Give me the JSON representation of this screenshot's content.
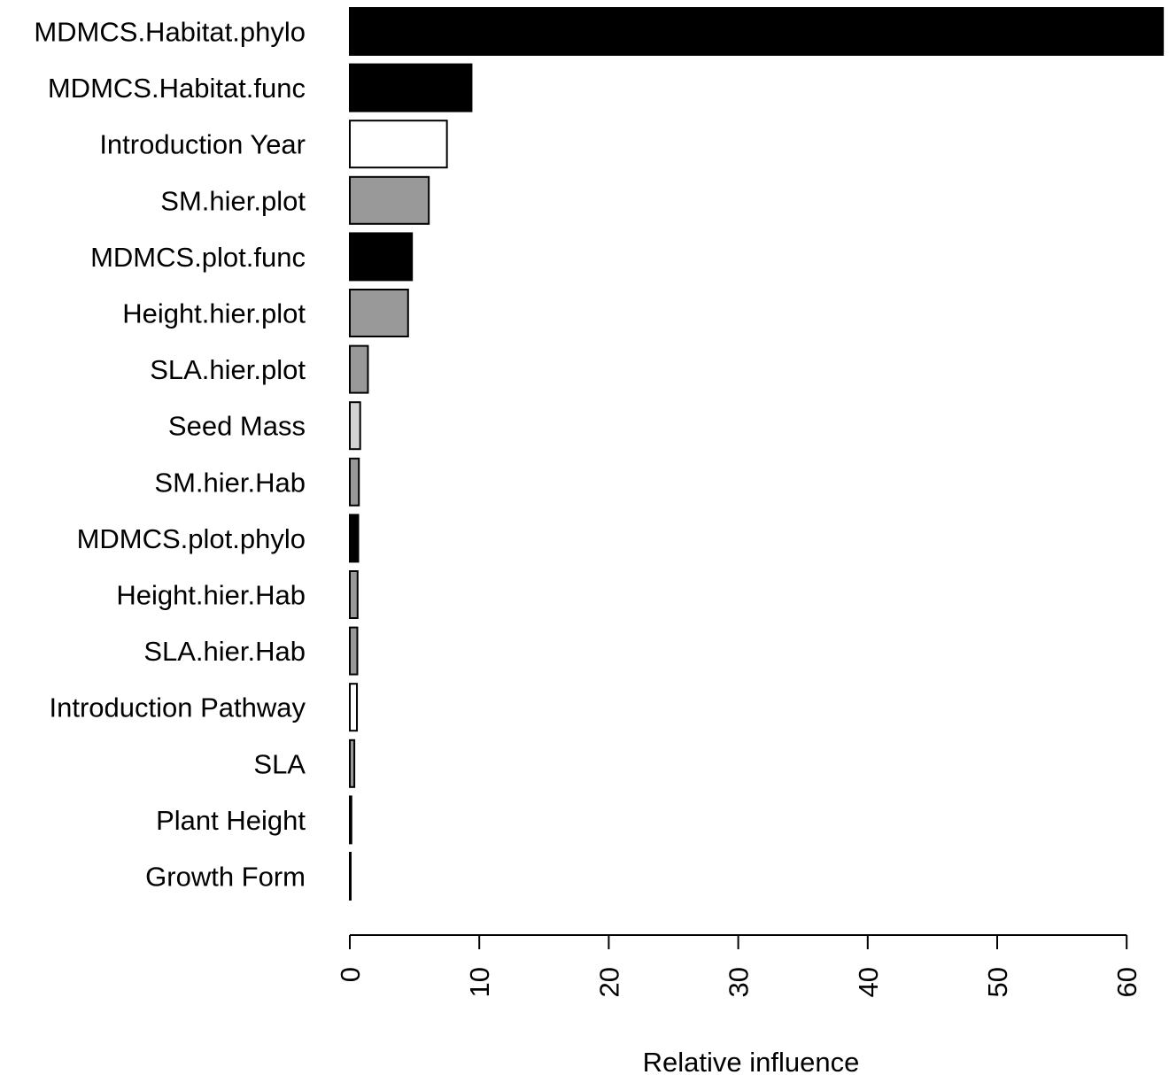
{
  "chart_data": {
    "type": "bar",
    "orientation": "horizontal",
    "categories": [
      "MDMCS.Habitat.phylo",
      "MDMCS.Habitat.func",
      "Introduction Year",
      "SM.hier.plot",
      "MDMCS.plot.func",
      "Height.hier.plot",
      "SLA.hier.plot",
      "Seed Mass",
      "SM.hier.Hab",
      "MDMCS.plot.phylo",
      "Height.hier.Hab",
      "SLA.hier.Hab",
      "Introduction Pathway",
      "SLA",
      "Plant Height",
      "Growth Form"
    ],
    "values": [
      62.8,
      9.4,
      7.5,
      6.1,
      4.8,
      4.5,
      1.4,
      0.8,
      0.7,
      0.65,
      0.6,
      0.58,
      0.55,
      0.35,
      0.12,
      0.05
    ],
    "colors": [
      "#000000",
      "#000000",
      "#ffffff",
      "#999999",
      "#000000",
      "#999999",
      "#999999",
      "#d3d3d3",
      "#999999",
      "#000000",
      "#999999",
      "#999999",
      "#ffffff",
      "#999999",
      "#000000",
      "#000000"
    ],
    "xlabel": "Relative influence",
    "ylabel": "",
    "xlim": [
      0,
      63
    ],
    "xticks": [
      "0",
      "10",
      "20",
      "30",
      "40",
      "50",
      "60"
    ],
    "grid": false,
    "legend": "none"
  }
}
